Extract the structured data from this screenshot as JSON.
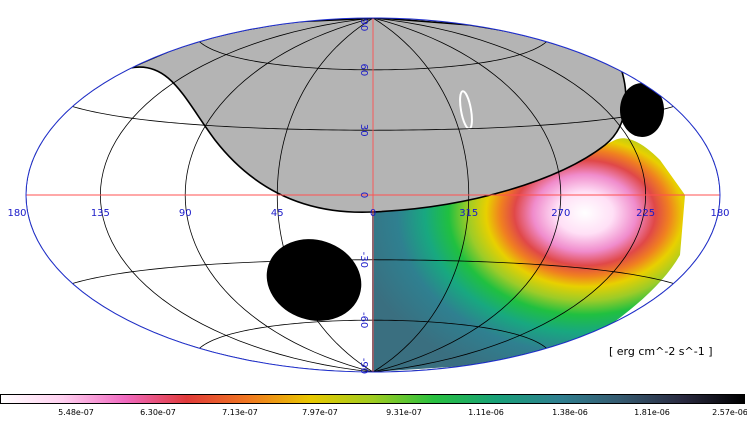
{
  "map": {
    "longitude_labels": [
      "180",
      "135",
      "90",
      "45",
      "0",
      "315",
      "270",
      "225",
      "180"
    ],
    "latitude_labels": [
      "90",
      "60",
      "30",
      "0",
      "-30",
      "-60",
      "-90"
    ],
    "units": "[ erg cm^-2 s^-1 ]",
    "colors": {
      "graticule": "#000000",
      "axis_lines": "#ff4040",
      "outline": "#2030d0",
      "labels": "#1a1ac8",
      "occulted": "#b4b4b4",
      "blank": "#000000"
    }
  },
  "colorbar": {
    "tick_labels": [
      "5.48e-07",
      "6.30e-07",
      "7.13e-07",
      "7.97e-07",
      "9.31e-07",
      "1.11e-06",
      "1.38e-06",
      "1.81e-06",
      "2.57e-06"
    ],
    "colors": [
      "#ffffff",
      "#ffd0f0",
      "#f06ac0",
      "#e03a3a",
      "#f07820",
      "#e8c800",
      "#a0cc20",
      "#28c040",
      "#18a078",
      "#2f8090",
      "#355a70",
      "#2a2a40",
      "#000000"
    ]
  }
}
